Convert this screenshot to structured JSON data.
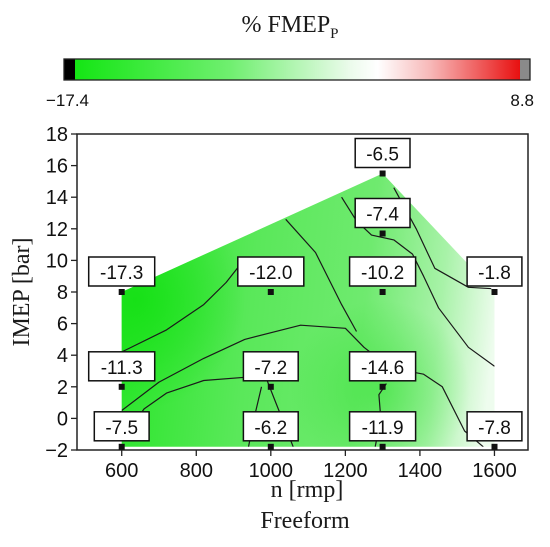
{
  "colors": {
    "low": "#14e614",
    "mid": "#ffffff",
    "high": "#e81010",
    "below_range": "#000000",
    "above_range": "#8a8a8a",
    "contour": "#1a1a1a"
  },
  "chart_data": {
    "type": "heatmap",
    "subtype": "contour",
    "title": "% FMEP",
    "title_subscript": "P",
    "xlabel": "n [rmp]",
    "ylabel": "IMEP [bar]",
    "caption": "Freeform",
    "xlim": [
      480,
      1690
    ],
    "ylim": [
      -2,
      18
    ],
    "xticks": [
      600,
      800,
      1000,
      1200,
      1400,
      1600
    ],
    "yticks": [
      -2,
      0,
      2,
      4,
      6,
      8,
      10,
      12,
      14,
      16,
      18
    ],
    "grid": false,
    "colorbar": {
      "min": -17.4,
      "max": 8.8,
      "min_label": "−17.4",
      "max_label": "8.8"
    },
    "points": [
      {
        "x": 600,
        "y": 8,
        "value": -17.3,
        "label": "-17.3"
      },
      {
        "x": 1000,
        "y": 8,
        "value": -12.0,
        "label": "-12.0"
      },
      {
        "x": 1300,
        "y": 8,
        "value": -10.2,
        "label": "-10.2"
      },
      {
        "x": 1600,
        "y": 8,
        "value": -1.8,
        "label": "-1.8"
      },
      {
        "x": 1300,
        "y": 15.5,
        "value": -6.5,
        "label": "-6.5"
      },
      {
        "x": 1300,
        "y": 11.7,
        "value": -7.4,
        "label": "-7.4"
      },
      {
        "x": 600,
        "y": 2,
        "value": -11.3,
        "label": "-11.3"
      },
      {
        "x": 1000,
        "y": 2,
        "value": -7.2,
        "label": "-7.2"
      },
      {
        "x": 1300,
        "y": 2,
        "value": -14.6,
        "label": "-14.6"
      },
      {
        "x": 600,
        "y": -1.8,
        "value": -7.5,
        "label": "-7.5"
      },
      {
        "x": 1000,
        "y": -1.8,
        "value": -6.2,
        "label": "-6.2"
      },
      {
        "x": 1300,
        "y": -1.8,
        "value": -11.9,
        "label": "-11.9"
      },
      {
        "x": 1600,
        "y": -1.8,
        "value": -7.8,
        "label": "-7.8"
      }
    ],
    "region": [
      [
        600,
        -1.8
      ],
      [
        600,
        8
      ],
      [
        1300,
        15.5
      ],
      [
        1600,
        8
      ],
      [
        1600,
        -1.8
      ]
    ],
    "contours": [
      [
        [
          600,
          4.2
        ],
        [
          720,
          5.6
        ],
        [
          820,
          7.2
        ],
        [
          880,
          8.6
        ],
        [
          920,
          9.8
        ]
      ],
      [
        [
          600,
          0.5
        ],
        [
          700,
          2.3
        ],
        [
          820,
          3.8
        ],
        [
          930,
          5.0
        ],
        [
          1080,
          5.9
        ],
        [
          1200,
          5.7
        ],
        [
          1250,
          4.5
        ],
        [
          1320,
          3.2
        ],
        [
          1410,
          2.8
        ],
        [
          1460,
          2.0
        ],
        [
          1520,
          -0.8
        ],
        [
          1570,
          -1.8
        ]
      ],
      [
        [
          1040,
          12.6
        ],
        [
          1120,
          10.5
        ],
        [
          1190,
          7.2
        ],
        [
          1230,
          5.5
        ]
      ],
      [
        [
          1190,
          14.0
        ],
        [
          1230,
          12.5
        ],
        [
          1270,
          11.6
        ],
        [
          1330,
          11.3
        ],
        [
          1380,
          10.4
        ],
        [
          1410,
          9.0
        ],
        [
          1450,
          7.0
        ],
        [
          1530,
          4.5
        ],
        [
          1600,
          3.3
        ]
      ],
      [
        [
          1330,
          14.6
        ],
        [
          1390,
          12.0
        ],
        [
          1440,
          9.5
        ],
        [
          1530,
          8.3
        ],
        [
          1600,
          8.2
        ]
      ],
      [
        [
          600,
          -1.4
        ],
        [
          660,
          0.6
        ],
        [
          720,
          1.6
        ],
        [
          820,
          2.4
        ],
        [
          930,
          2.6
        ],
        [
          990,
          2.4
        ],
        [
          1010,
          1.2
        ],
        [
          1030,
          0.0
        ],
        [
          1060,
          -1.8
        ]
      ],
      [
        [
          940,
          -1.8
        ],
        [
          960,
          0.5
        ],
        [
          975,
          2.0
        ]
      ],
      [
        [
          1280,
          -1.8
        ],
        [
          1295,
          0.0
        ],
        [
          1290,
          1.5
        ],
        [
          1310,
          2.2
        ]
      ]
    ]
  }
}
